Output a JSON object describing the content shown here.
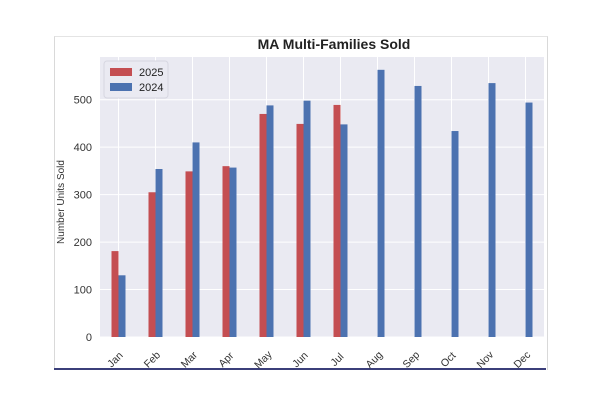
{
  "chart_data": {
    "type": "bar",
    "title": "MA Multi-Families Sold",
    "xlabel": "",
    "ylabel": "Number Units Sold",
    "categories": [
      "Jan",
      "Feb",
      "Mar",
      "Apr",
      "May",
      "Jun",
      "Jul",
      "Aug",
      "Sep",
      "Oct",
      "Nov",
      "Dec"
    ],
    "series": [
      {
        "name": "2025",
        "color": "#c44e52",
        "values": [
          181,
          305,
          349,
          360,
          470,
          449,
          489,
          null,
          null,
          null,
          null,
          null
        ]
      },
      {
        "name": "2024",
        "color": "#4c72b0",
        "values": [
          130,
          354,
          410,
          357,
          488,
          498,
          448,
          563,
          529,
          434,
          535,
          494
        ]
      }
    ],
    "ylim": [
      0,
      590
    ],
    "yticks": [
      0,
      100,
      200,
      300,
      400,
      500
    ],
    "grid": true,
    "legend": "top-left",
    "background": "#eaeaf2"
  }
}
